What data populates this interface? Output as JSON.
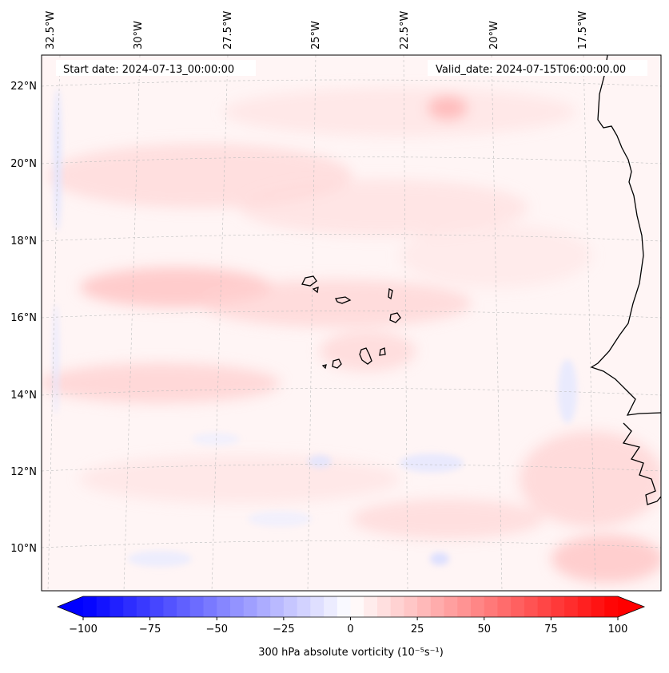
{
  "map": {
    "start_date": "Start date: 2024-07-13_00:00:00",
    "valid_date": "Valid_date: 2024-07-15T06:00:00.00",
    "lon_labels": [
      "32.5°W",
      "30°W",
      "27.5°W",
      "25°W",
      "22.5°W",
      "20°W",
      "17.5°W"
    ],
    "lat_labels": [
      "22°N",
      "20°N",
      "18°N",
      "16°N",
      "14°N",
      "12°N",
      "10°N"
    ]
  },
  "colorbar": {
    "label": "300 hPa absolute vorticity (10⁻⁵s⁻¹)",
    "ticks": [
      "−100",
      "−75",
      "−50",
      "−25",
      "0",
      "25",
      "50",
      "75",
      "100"
    ],
    "min": -100,
    "max": 100,
    "colors": {
      "low": "#0000ff",
      "mid": "#ffffff",
      "high": "#ff0000"
    }
  }
}
